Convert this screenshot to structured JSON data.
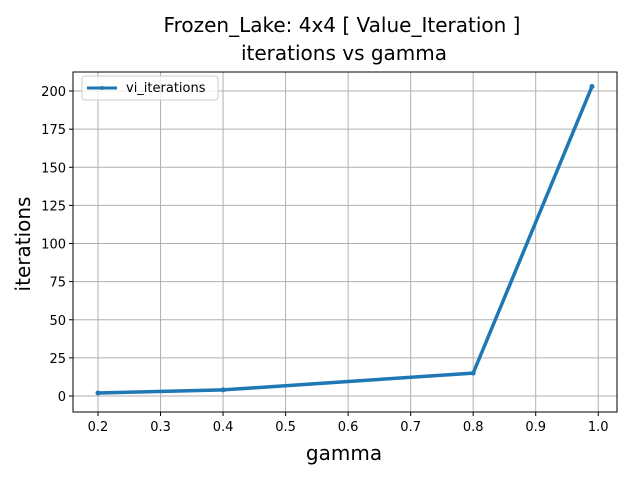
{
  "chart_data": {
    "type": "line",
    "title_line1": "Frozen_Lake: 4x4 [ Value_Iteration ]",
    "title_line2": "iterations vs gamma",
    "xlabel": "gamma",
    "ylabel": "iterations",
    "xlim": [
      0.16,
      1.03
    ],
    "ylim": [
      -10.5,
      212.5
    ],
    "x_ticks": [
      0.2,
      0.3,
      0.4,
      0.5,
      0.6,
      0.7,
      0.8,
      0.9,
      1.0
    ],
    "x_tick_labels": [
      "0.2",
      "0.3",
      "0.4",
      "0.5",
      "0.6",
      "0.7",
      "0.8",
      "0.9",
      "1.0"
    ],
    "y_ticks": [
      0,
      25,
      50,
      75,
      100,
      125,
      150,
      175,
      200
    ],
    "y_tick_labels": [
      "0",
      "25",
      "50",
      "75",
      "100",
      "125",
      "150",
      "175",
      "200"
    ],
    "grid": true,
    "legend_position": "top-left",
    "series": [
      {
        "name": "vi_iterations",
        "color": "#1f77b4",
        "x": [
          0.2,
          0.4,
          0.8,
          0.99
        ],
        "y": [
          2,
          4,
          15,
          203
        ]
      }
    ]
  }
}
